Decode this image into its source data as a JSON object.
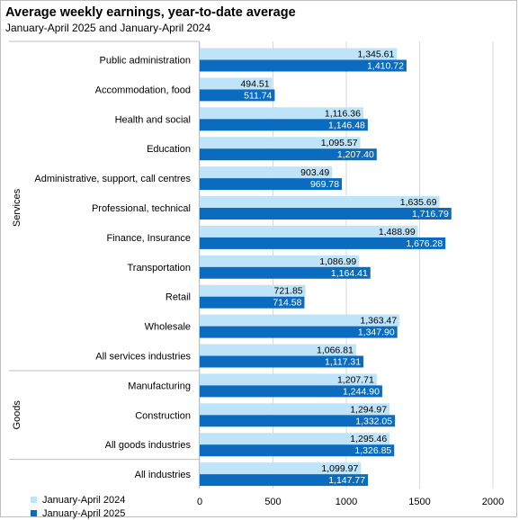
{
  "colors": {
    "series_2024": "#bfe4f9",
    "series_2025": "#0b6cbf",
    "grid": "#d9d9d9",
    "divider": "#bfbfbf"
  },
  "chart_data": {
    "type": "bar",
    "orientation": "horizontal",
    "title": "Average weekly earnings, year-to-date average",
    "subtitle": "January-April 2025 and January-April 2024",
    "categories": [
      "Public administration",
      "Accommodation, food",
      "Health and social",
      "Education",
      "Administrative, support, call centres",
      "Professional, technical",
      "Finance, Insurance",
      "Transportation",
      "Retail",
      "Wholesale",
      "All services industries",
      "Manufacturing",
      "Construction",
      "All goods industries",
      "All industries"
    ],
    "groups": [
      {
        "label": "Services",
        "start": 0,
        "end": 10
      },
      {
        "label": "Goods",
        "start": 11,
        "end": 13
      }
    ],
    "series": [
      {
        "name": "January-April 2024",
        "values": [
          1345.61,
          494.51,
          1116.36,
          1095.57,
          903.49,
          1635.69,
          1488.99,
          1086.99,
          721.85,
          1363.47,
          1066.81,
          1207.71,
          1294.97,
          1295.46,
          1099.97
        ],
        "labels": [
          "1,345.61",
          "494.51",
          "1,116.36",
          "1,095.57",
          "903.49",
          "1,635.69",
          "1,488.99",
          "1,086.99",
          "721.85",
          "1,363.47",
          "1,066.81",
          "1,207.71",
          "1,294.97",
          "1,295.46",
          "1,099.97"
        ]
      },
      {
        "name": "January-April 2025",
        "values": [
          1410.72,
          511.74,
          1146.48,
          1207.4,
          969.78,
          1716.79,
          1676.28,
          1164.41,
          714.58,
          1347.9,
          1117.31,
          1244.9,
          1332.05,
          1326.85,
          1147.77
        ],
        "labels": [
          "1,410.72",
          "511.74",
          "1,146.48",
          "1,207.40",
          "969.78",
          "1,716.79",
          "1,676.28",
          "1,164.41",
          "714.58",
          "1,347.90",
          "1,117.31",
          "1,244.90",
          "1,332.05",
          "1,326.85",
          "1,147.77"
        ]
      }
    ],
    "xlim": [
      0,
      2000
    ],
    "xticks": [
      "0",
      "500",
      "1000",
      "1500",
      "2000"
    ],
    "grid": true,
    "legend_position": "bottom-left"
  }
}
